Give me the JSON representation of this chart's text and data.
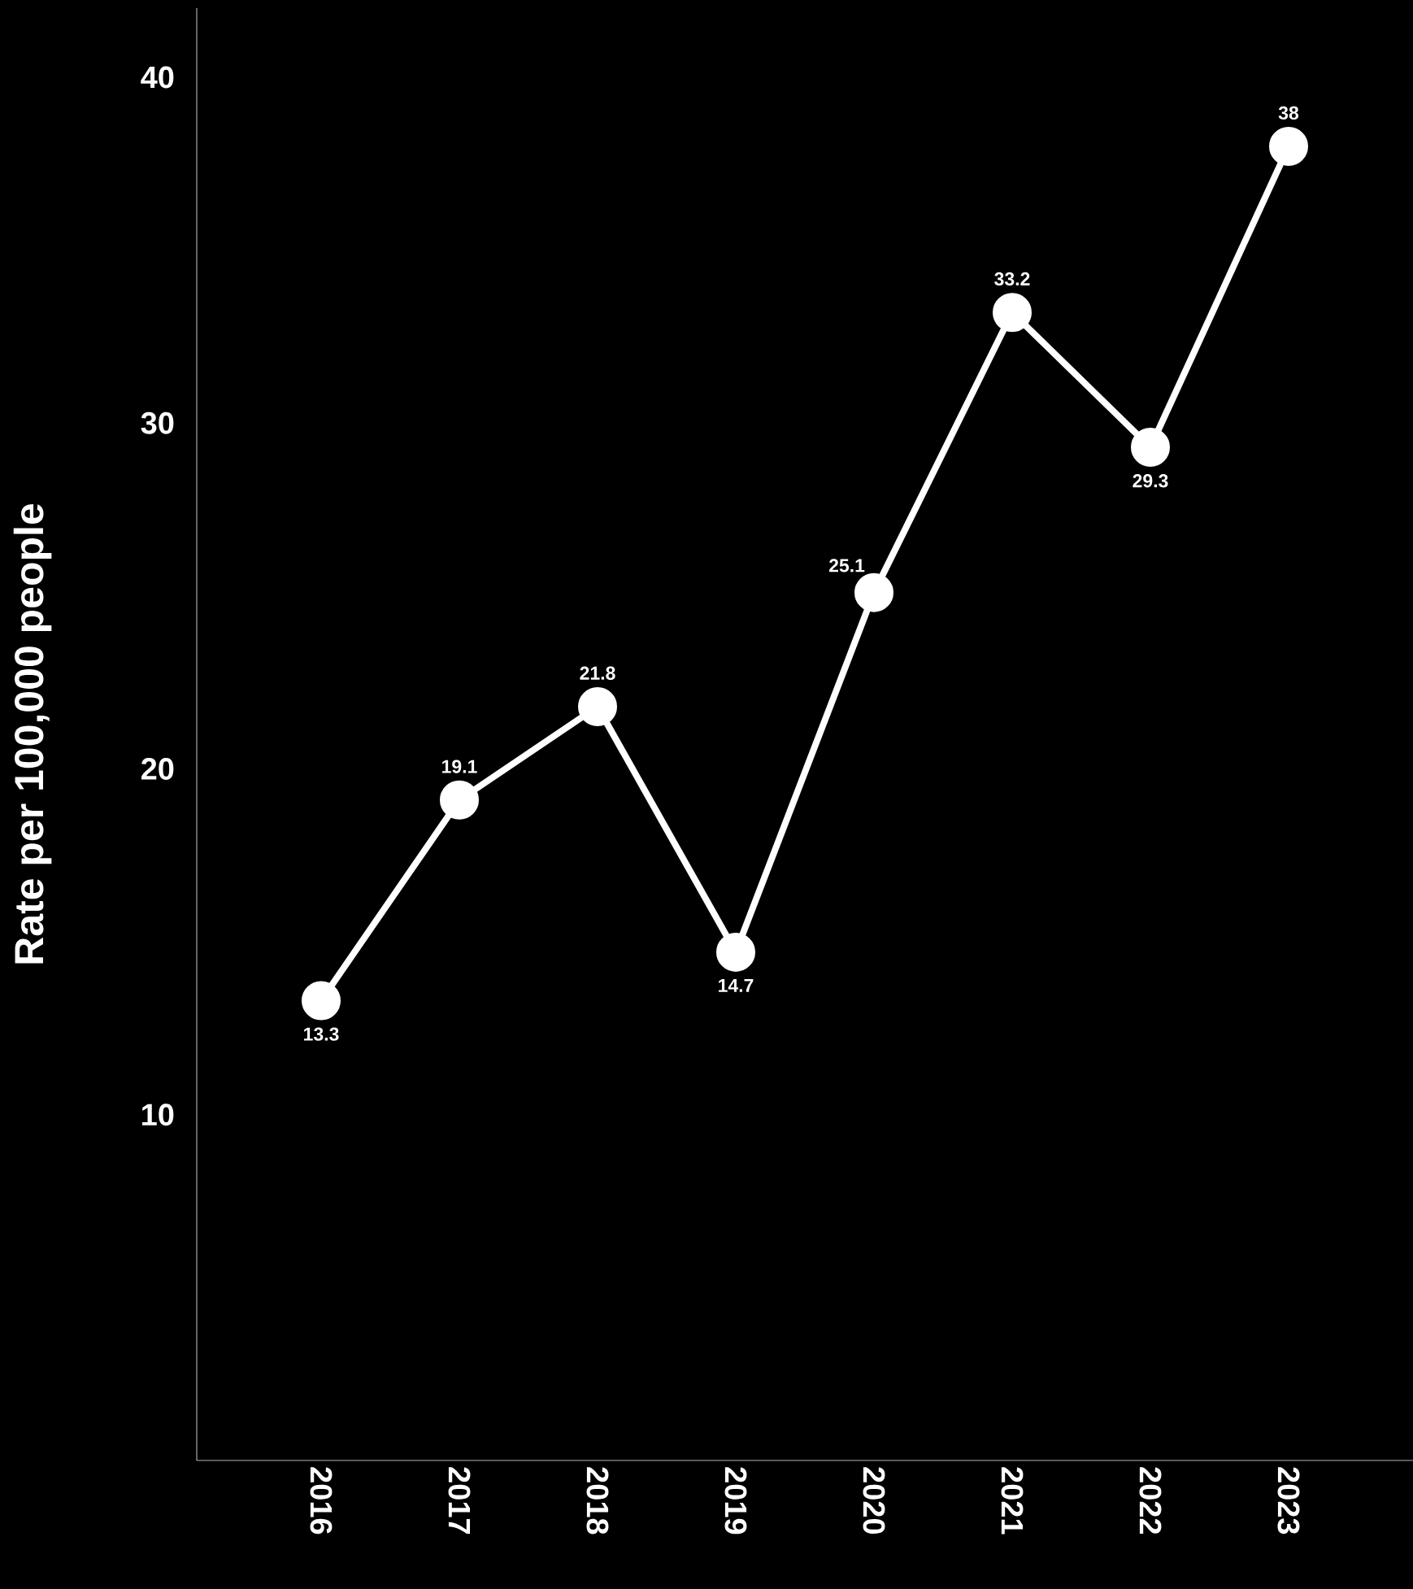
{
  "chart_data": {
    "type": "line",
    "ylabel": "Rate per 100,000 people",
    "categories": [
      "2016",
      "2017",
      "2018",
      "2019",
      "2020",
      "2021",
      "2022",
      "2023"
    ],
    "values": [
      13.3,
      19.1,
      21.8,
      14.7,
      25.1,
      33.2,
      29.3,
      38
    ],
    "value_labels": [
      "13.3",
      "19.1",
      "21.8",
      "14.7",
      "25.1",
      "33.2",
      "29.3",
      "38"
    ],
    "color": "#ffffff",
    "marker": "circle",
    "line_style": "solid",
    "grid": false,
    "legend": false,
    "ylim": [
      0,
      42
    ],
    "yticks": [
      10,
      20,
      30,
      40
    ]
  }
}
